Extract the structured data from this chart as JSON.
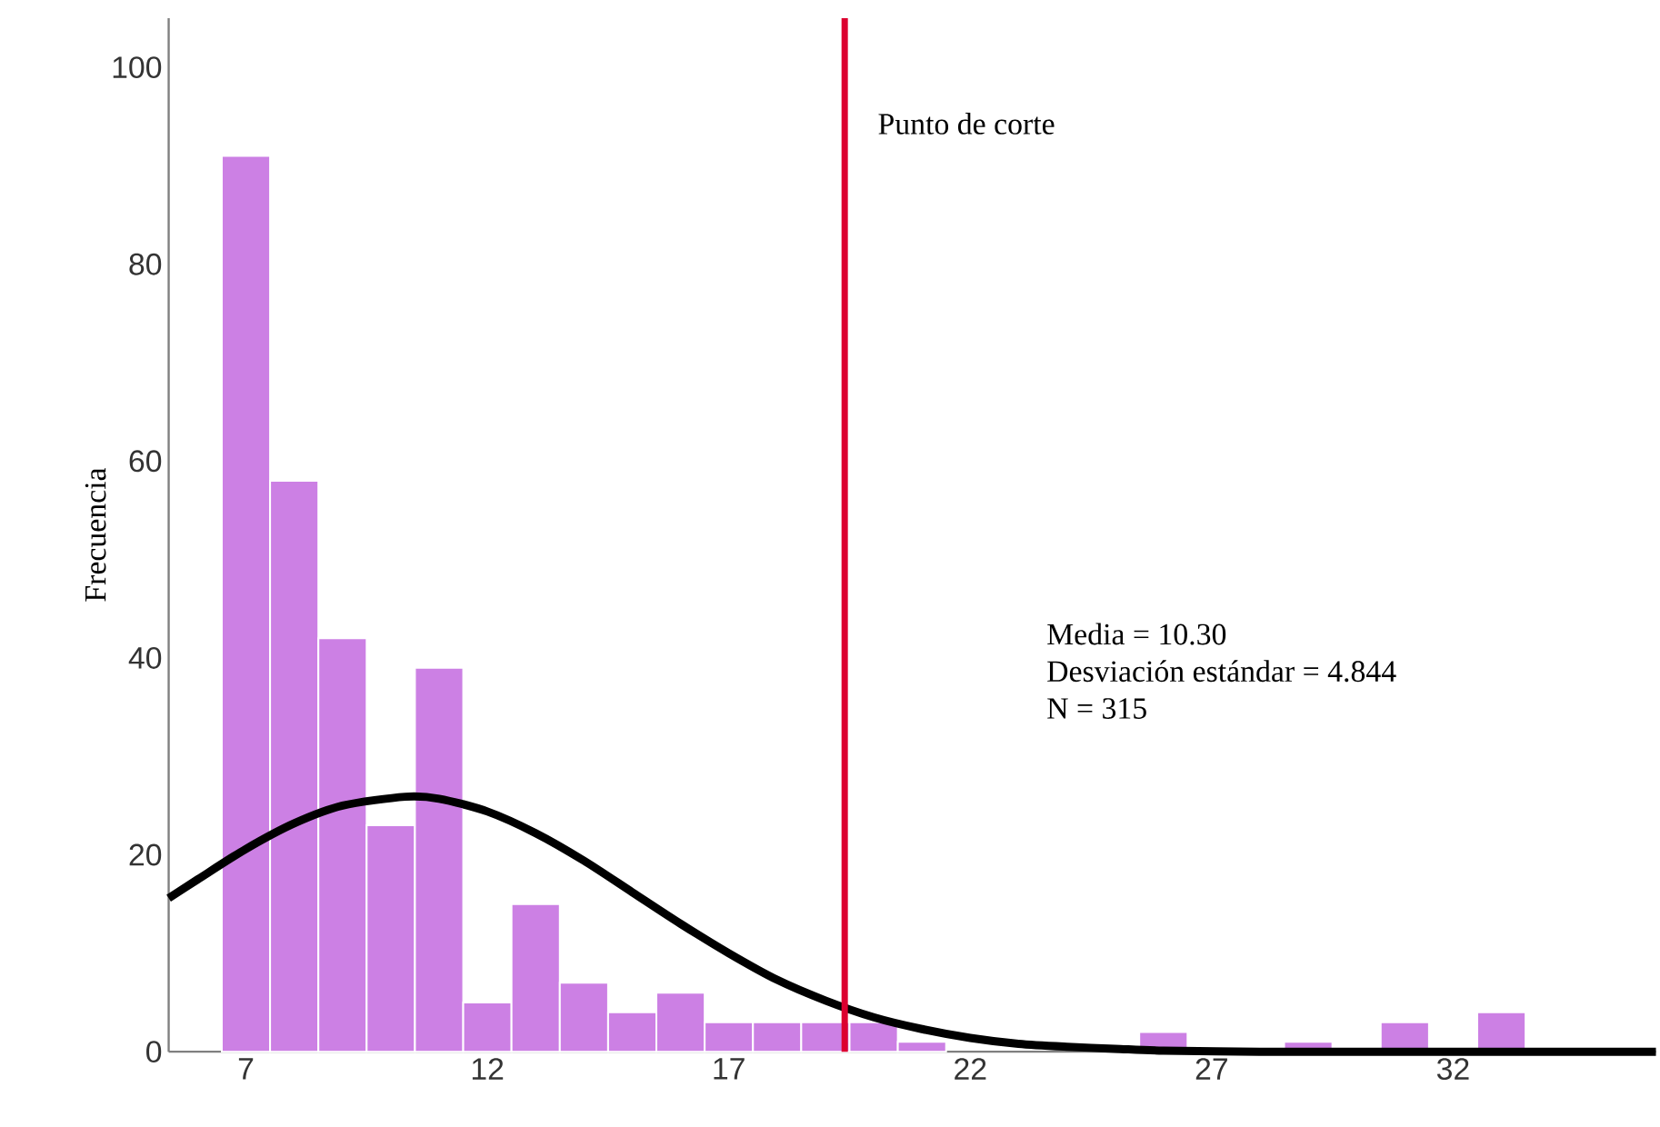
{
  "chart_data": {
    "type": "histogram",
    "ylabel": "Frecuencia",
    "bins": [
      6.5,
      7.5,
      8.5,
      9.5,
      10.5,
      11.5,
      12.5,
      13.5,
      14.5,
      15.5,
      16.5,
      17.5,
      18.5,
      19.5,
      20.5,
      21.5,
      22.5,
      23.5,
      24.5,
      25.5,
      26.5,
      27.5,
      28.5,
      29.5,
      30.5,
      31.5,
      32.5,
      33.5
    ],
    "values": [
      91,
      58,
      42,
      23,
      39,
      5,
      15,
      7,
      4,
      6,
      3,
      3,
      3,
      3,
      1,
      0,
      0,
      0,
      0,
      2,
      0,
      0,
      1,
      0,
      3,
      0,
      4
    ],
    "color": "#cc80e4",
    "series": [
      {
        "type": "line",
        "color": "#000000",
        "x": [
          5.4,
          6,
          7,
          8,
          9,
          10.3,
          11,
          12,
          13,
          14,
          15,
          16,
          17,
          18,
          19,
          20,
          21,
          22,
          23,
          24,
          25,
          26,
          28,
          30,
          36.2
        ],
        "values": [
          15.6,
          17.5,
          20.6,
          23.2,
          25,
          25.9,
          25.7,
          24.4,
          22.2,
          19.4,
          16.2,
          13,
          10,
          7.3,
          5.2,
          3.5,
          2.3,
          1.4,
          0.8,
          0.5,
          0.3,
          0.1,
          0,
          0,
          0
        ]
      }
    ],
    "xlim": [
      5.4,
      36.2
    ],
    "ylim": [
      0,
      105
    ],
    "xticks": [
      7,
      12,
      17,
      22,
      27,
      32
    ],
    "yticks": [
      0,
      20,
      40,
      60,
      80,
      100
    ],
    "ref_lines": [
      {
        "axis": "x",
        "value": 19.4,
        "label": "Punto de corte",
        "color": "#dc0030"
      }
    ],
    "annotations": [
      "Media = 10.30",
      "Desviación estándar = 4.844",
      "N = 315"
    ]
  }
}
